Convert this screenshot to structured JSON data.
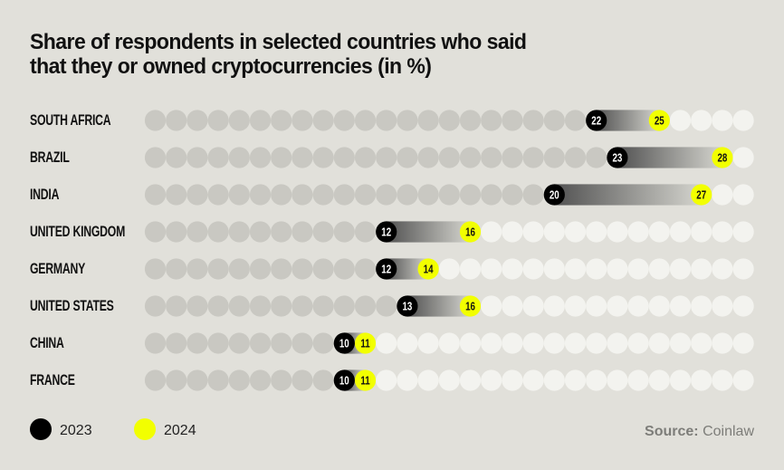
{
  "chart_data": {
    "type": "dot-range",
    "title_lines": [
      "Share of respondents in selected countries who said",
      "that they or owned cryptocurrencies (in %)"
    ],
    "scale_max_dots": 29,
    "categories": [
      "SOUTH AFRICA",
      "BRAZIL",
      "INDIA",
      "UNITED KINGDOM",
      "GERMANY",
      "UNITED STATES",
      "CHINA",
      "FRANCE"
    ],
    "series": [
      {
        "name": "2023",
        "color": "#000000",
        "values": [
          22,
          23,
          20,
          12,
          12,
          13,
          10,
          10
        ]
      },
      {
        "name": "2024",
        "color": "#f2ff00",
        "values": [
          25,
          28,
          27,
          16,
          14,
          16,
          11,
          11
        ]
      }
    ],
    "legend": {
      "placement": "bottom-left",
      "items": [
        "2023",
        "2024"
      ]
    },
    "source": {
      "label": "Source:",
      "name": "Coinlaw"
    },
    "colors": {
      "background": "#e1e0da",
      "dot_filled": "#c9c8c2",
      "dot_empty": "#f3f3ef",
      "gradient_start": "#525252",
      "gradient_end": "#d4d4ce"
    }
  }
}
